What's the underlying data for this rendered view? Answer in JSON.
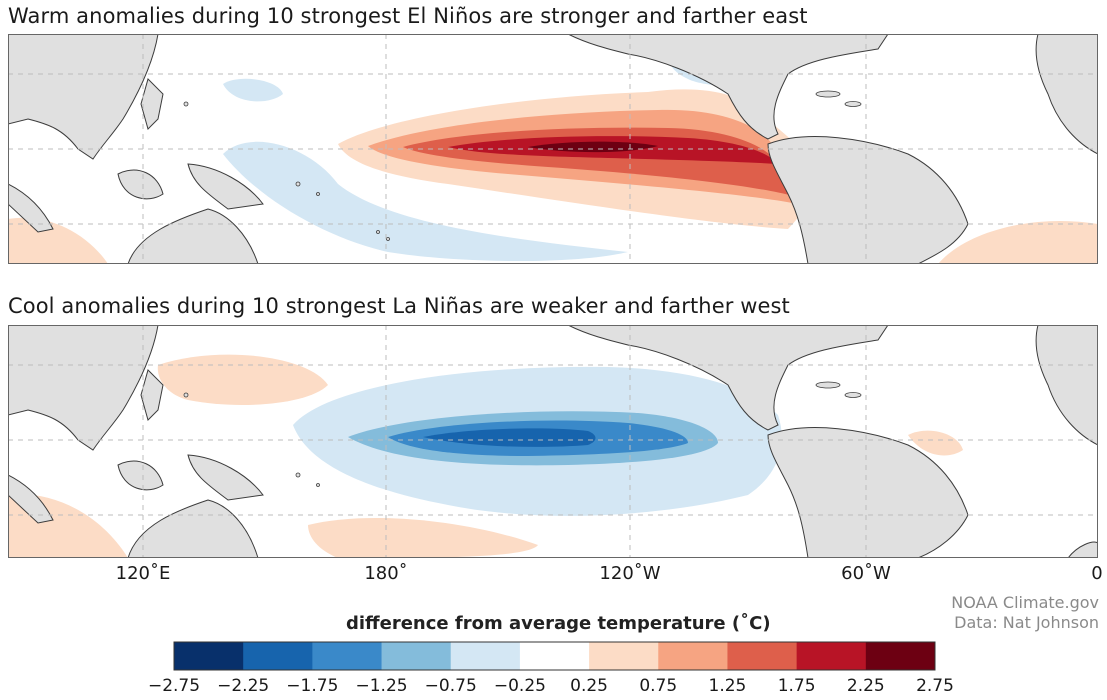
{
  "panels": [
    {
      "title": "Warm anomalies during 10 strongest El Niños are stronger and farther east"
    },
    {
      "title": "Cool anomalies during 10 strongest La Niñas are weaker and farther west"
    }
  ],
  "longitude_labels": [
    "120˚E",
    "180˚",
    "120˚W",
    "60˚W",
    "0"
  ],
  "colorbar": {
    "title": "difference from average temperature (˚C)",
    "ticks": [
      "−2.75",
      "−2.25",
      "−1.75",
      "−1.25",
      "−0.75",
      "−0.25",
      "0.25",
      "0.75",
      "1.25",
      "1.75",
      "2.25",
      "2.75"
    ],
    "colors": [
      "#08306b",
      "#1764ad",
      "#3a89c9",
      "#84bcdb",
      "#d4e7f4",
      "#ffffff",
      "#fcdcc6",
      "#f6a482",
      "#de5f4b",
      "#b81426",
      "#6d0012"
    ]
  },
  "colors": {
    "land": "#e0e0e0",
    "coast": "#3c3c3c",
    "grid": "#bdbdbd"
  },
  "credit": {
    "line1": "NOAA Climate.gov",
    "line2": "Data: Nat Johnson"
  }
}
